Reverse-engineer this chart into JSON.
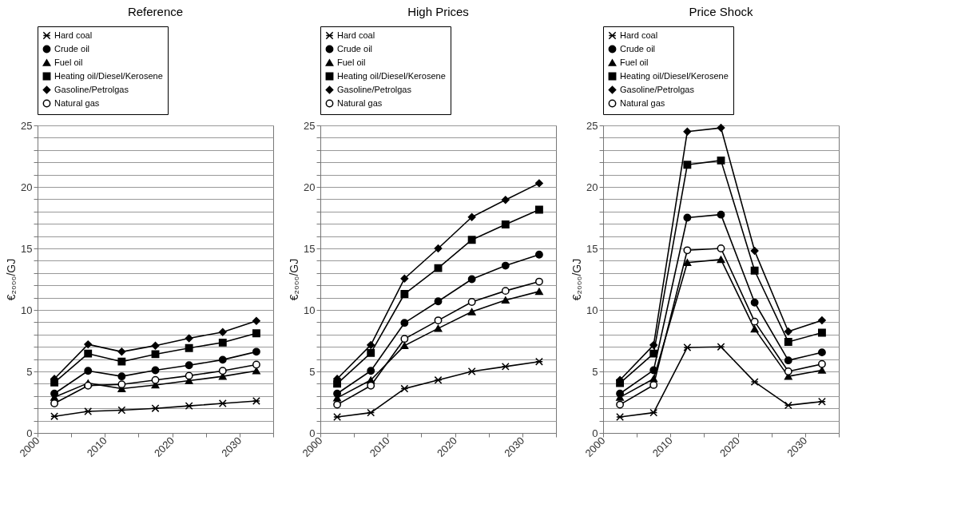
{
  "chart_data": [
    {
      "type": "line",
      "title": "Reference",
      "ylabel": "€₂₀₀₀/GJ",
      "x": [
        2002.5,
        2007.5,
        2012.5,
        2017.5,
        2022.5,
        2027.5,
        2032.5
      ],
      "xlim": [
        2000,
        2035
      ],
      "xticks": [
        2000,
        {
          "value": 2005,
          "label": null
        },
        2010,
        {
          "value": 2015,
          "label": null
        },
        2020,
        {
          "value": 2025,
          "label": null
        },
        2030,
        {
          "value": 2035,
          "label": null
        }
      ],
      "ylim": [
        0,
        25
      ],
      "yticks": [
        0,
        {
          "value": 1,
          "label": null
        },
        {
          "value": 2,
          "label": null
        },
        {
          "value": 3,
          "label": null
        },
        {
          "value": 4,
          "label": null
        },
        5,
        {
          "value": 6,
          "label": null
        },
        {
          "value": 7,
          "label": null
        },
        {
          "value": 8,
          "label": null
        },
        {
          "value": 9,
          "label": null
        },
        10,
        {
          "value": 11,
          "label": null
        },
        {
          "value": 12,
          "label": null
        },
        {
          "value": 13,
          "label": null
        },
        {
          "value": 14,
          "label": null
        },
        15,
        {
          "value": 16,
          "label": null
        },
        {
          "value": 17,
          "label": null
        },
        {
          "value": 18,
          "label": null
        },
        {
          "value": 19,
          "label": null
        },
        20,
        {
          "value": 21,
          "label": null
        },
        {
          "value": 22,
          "label": null
        },
        {
          "value": 23,
          "label": null
        },
        {
          "value": 24,
          "label": null
        },
        25
      ],
      "grid": "y",
      "legend": "top",
      "series": [
        {
          "name": "Hard coal",
          "color": "#000000",
          "marker": "cross",
          "values": [
            1.35,
            1.75,
            1.85,
            2.0,
            2.2,
            2.4,
            2.6
          ]
        },
        {
          "name": "Crude oil",
          "color": "#000000",
          "marker": "circle",
          "values": [
            3.2,
            5.05,
            4.6,
            5.1,
            5.5,
            5.95,
            6.6
          ]
        },
        {
          "name": "Fuel oil",
          "color": "#000000",
          "marker": "triangle",
          "values": [
            2.9,
            4.05,
            3.6,
            3.9,
            4.25,
            4.6,
            5.05
          ]
        },
        {
          "name": "Heating oil/Diesel/Kerosene",
          "color": "#000000",
          "marker": "square",
          "values": [
            4.1,
            6.45,
            5.8,
            6.4,
            6.9,
            7.35,
            8.1
          ]
        },
        {
          "name": "Gasoline/Petrolgas",
          "color": "#000000",
          "marker": "diamond",
          "values": [
            4.4,
            7.2,
            6.6,
            7.1,
            7.7,
            8.2,
            9.1
          ]
        },
        {
          "name": "Natural gas",
          "color": "#000000",
          "marker": "circle",
          "values": [
            2.4,
            3.85,
            3.95,
            4.3,
            4.65,
            5.05,
            5.55
          ]
        }
      ]
    },
    {
      "type": "line",
      "title": "High Prices",
      "ylabel": "€₂₀₀₀/GJ",
      "x": [
        2002.5,
        2007.5,
        2012.5,
        2017.5,
        2022.5,
        2027.5,
        2032.5
      ],
      "xlim": [
        2000,
        2035
      ],
      "xticks": [
        2000,
        {
          "value": 2005,
          "label": null
        },
        2010,
        {
          "value": 2015,
          "label": null
        },
        2020,
        {
          "value": 2025,
          "label": null
        },
        2030,
        {
          "value": 2035,
          "label": null
        }
      ],
      "ylim": [
        0,
        25
      ],
      "yticks": [
        0,
        {
          "value": 1,
          "label": null
        },
        {
          "value": 2,
          "label": null
        },
        {
          "value": 3,
          "label": null
        },
        {
          "value": 4,
          "label": null
        },
        5,
        {
          "value": 6,
          "label": null
        },
        {
          "value": 7,
          "label": null
        },
        {
          "value": 8,
          "label": null
        },
        {
          "value": 9,
          "label": null
        },
        10,
        {
          "value": 11,
          "label": null
        },
        {
          "value": 12,
          "label": null
        },
        {
          "value": 13,
          "label": null
        },
        {
          "value": 14,
          "label": null
        },
        15,
        {
          "value": 16,
          "label": null
        },
        {
          "value": 17,
          "label": null
        },
        {
          "value": 18,
          "label": null
        },
        {
          "value": 19,
          "label": null
        },
        20,
        {
          "value": 21,
          "label": null
        },
        {
          "value": 22,
          "label": null
        },
        {
          "value": 23,
          "label": null
        },
        {
          "value": 24,
          "label": null
        },
        25
      ],
      "grid": "y",
      "legend": "top",
      "series": [
        {
          "name": "Hard coal",
          "color": "#000000",
          "marker": "cross",
          "values": [
            1.3,
            1.65,
            3.6,
            4.3,
            5.0,
            5.4,
            5.8
          ]
        },
        {
          "name": "Crude oil",
          "color": "#000000",
          "marker": "circle",
          "values": [
            3.2,
            5.05,
            8.95,
            10.7,
            12.5,
            13.6,
            14.5
          ]
        },
        {
          "name": "Fuel oil",
          "color": "#000000",
          "marker": "triangle",
          "values": [
            2.85,
            4.3,
            7.1,
            8.5,
            9.85,
            10.8,
            11.5
          ]
        },
        {
          "name": "Heating oil/Diesel/Kerosene",
          "color": "#000000",
          "marker": "square",
          "values": [
            4.0,
            6.5,
            11.3,
            13.4,
            15.7,
            16.95,
            18.15
          ]
        },
        {
          "name": "Gasoline/Petrolgas",
          "color": "#000000",
          "marker": "diamond",
          "values": [
            4.4,
            7.15,
            12.55,
            15.0,
            17.55,
            18.95,
            20.3
          ]
        },
        {
          "name": "Natural gas",
          "color": "#000000",
          "marker": "circle",
          "values": [
            2.3,
            3.85,
            7.65,
            9.15,
            10.65,
            11.55,
            12.3
          ]
        }
      ]
    },
    {
      "type": "line",
      "title": "Price Shock",
      "ylabel": "€₂₀₀₀/GJ",
      "x": [
        2002.5,
        2007.5,
        2012.5,
        2017.5,
        2022.5,
        2027.5,
        2032.5
      ],
      "xlim": [
        2000,
        2035
      ],
      "xticks": [
        2000,
        {
          "value": 2005,
          "label": null
        },
        2010,
        {
          "value": 2015,
          "label": null
        },
        2020,
        {
          "value": 2025,
          "label": null
        },
        2030,
        {
          "value": 2035,
          "label": null
        }
      ],
      "ylim": [
        0,
        25
      ],
      "yticks": [
        0,
        {
          "value": 1,
          "label": null
        },
        {
          "value": 2,
          "label": null
        },
        {
          "value": 3,
          "label": null
        },
        {
          "value": 4,
          "label": null
        },
        5,
        {
          "value": 6,
          "label": null
        },
        {
          "value": 7,
          "label": null
        },
        {
          "value": 8,
          "label": null
        },
        {
          "value": 9,
          "label": null
        },
        10,
        {
          "value": 11,
          "label": null
        },
        {
          "value": 12,
          "label": null
        },
        {
          "value": 13,
          "label": null
        },
        {
          "value": 14,
          "label": null
        },
        15,
        {
          "value": 16,
          "label": null
        },
        {
          "value": 17,
          "label": null
        },
        {
          "value": 18,
          "label": null
        },
        {
          "value": 19,
          "label": null
        },
        20,
        {
          "value": 21,
          "label": null
        },
        {
          "value": 22,
          "label": null
        },
        {
          "value": 23,
          "label": null
        },
        {
          "value": 24,
          "label": null
        },
        25
      ],
      "grid": "y",
      "legend": "top",
      "series": [
        {
          "name": "Hard coal",
          "color": "#000000",
          "marker": "cross",
          "values": [
            1.3,
            1.65,
            6.95,
            7.0,
            4.15,
            2.25,
            2.55
          ]
        },
        {
          "name": "Crude oil",
          "color": "#000000",
          "marker": "circle",
          "values": [
            3.2,
            5.1,
            17.5,
            17.75,
            10.6,
            5.9,
            6.55
          ]
        },
        {
          "name": "Fuel oil",
          "color": "#000000",
          "marker": "triangle",
          "values": [
            2.9,
            4.4,
            13.85,
            14.1,
            8.45,
            4.6,
            5.1
          ]
        },
        {
          "name": "Heating oil/Diesel/Kerosene",
          "color": "#000000",
          "marker": "square",
          "values": [
            4.05,
            6.45,
            21.8,
            22.15,
            13.2,
            7.4,
            8.15
          ]
        },
        {
          "name": "Gasoline/Petrolgas",
          "color": "#000000",
          "marker": "diamond",
          "values": [
            4.3,
            7.15,
            24.5,
            24.8,
            14.8,
            8.25,
            9.15
          ]
        },
        {
          "name": "Natural gas",
          "color": "#000000",
          "marker": "circle",
          "values": [
            2.3,
            3.9,
            14.85,
            15.0,
            9.05,
            5.0,
            5.6
          ]
        }
      ]
    }
  ]
}
